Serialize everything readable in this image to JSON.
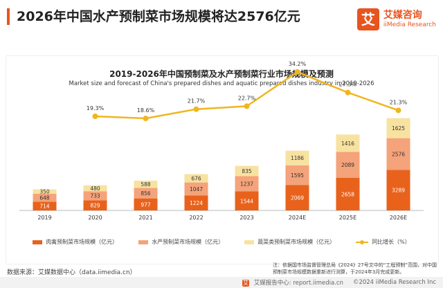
{
  "header": {
    "title": "2026年中国水产预制菜市场规模将达2576亿元",
    "brand_logo_char": "艾",
    "brand_name": "艾媒咨询",
    "brand_en": "iiMedia Research"
  },
  "colors": {
    "series1": "#e8621c",
    "series2": "#f4a37a",
    "series3": "#f8e2a0",
    "line": "#f0b61e",
    "accent": "#e8541e"
  },
  "chart_data": {
    "type": "bar",
    "stacked": true,
    "title": "2019-2026年中国预制菜及水产预制菜行业市场规模及预测",
    "subtitle": "Market size and forecast of China's prepared dishes and aquatic prepared dishes industry in 2019-2026",
    "categories": [
      "2019",
      "2020",
      "2021",
      "2022",
      "2023",
      "2024E",
      "2025E",
      "2026E"
    ],
    "series": [
      {
        "name": "肉禽预制菜市场规模（亿元）",
        "values": [
          714,
          829,
          977,
          1224,
          1544,
          2069,
          2658,
          3289
        ]
      },
      {
        "name": "水产预制菜市场规模（亿元）",
        "values": [
          648,
          733,
          856,
          1047,
          1237,
          1595,
          2089,
          2576
        ]
      },
      {
        "name": "蔬菜类预制菜市场规模（亿元）",
        "values": [
          350,
          480,
          588,
          676,
          835,
          1186,
          1416,
          1625
        ]
      }
    ],
    "line_series": {
      "name": "同比增长（%）",
      "values": [
        null,
        19.3,
        18.6,
        21.7,
        22.7,
        34.2,
        27.3,
        21.3
      ],
      "labels": [
        "",
        "19.3%",
        "18.6%",
        "21.7%",
        "22.7%",
        "34.2%",
        "27.3%",
        "21.3%"
      ]
    },
    "legend_position": "bottom",
    "grid": false
  },
  "source_text": "数据来源：艾媒数据中心（data.iimedia.cn）",
  "note_text": "注：依据国市场监督管理总局《2024》27号文中的“工程预制”范围，对中国预制菜市场规模数据重新进行测算，于2024年3月完成更新。",
  "footer": {
    "report_icon": "艾",
    "report_text": "艾媒报告中心: report.iimedia.cn",
    "copyright": "©2024  iiMedia Research  Inc"
  }
}
